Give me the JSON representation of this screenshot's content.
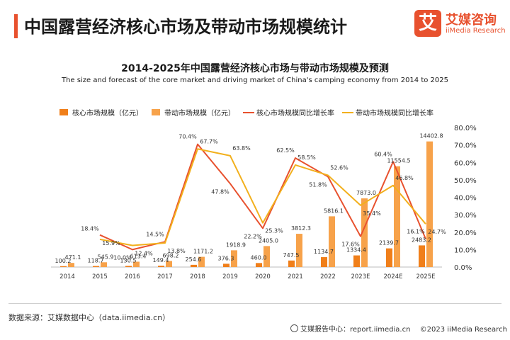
{
  "header": {
    "title": "中国露营经济核心市场及带动市场规模统计",
    "logo_glyph": "艾",
    "logo_cn": "艾媒咨询",
    "logo_en": "iiMedia Research"
  },
  "footer": {
    "source": "数据来源：艾媒数据中心（data.iimedia.cn）",
    "report": "艾媒报告中心：report.iimedia.cn",
    "copyright": "©2023 iiMedia Research"
  },
  "colors": {
    "core_bar": "#f07f1a",
    "driven_bar": "#f7a24a",
    "core_line": "#e8512e",
    "driven_line": "#f2b01d",
    "accent": "#e8512e"
  },
  "chart_data": {
    "type": "bar",
    "title": "2014-2025年中国露营经济核心市场与带动市场规模及预测",
    "subtitle": "The size and forecast of the core market and driving market of China's camping economy from 2014 to 2025",
    "categories": [
      "2014",
      "2015",
      "2016",
      "2017",
      "2018",
      "2019",
      "2020",
      "2021",
      "2022",
      "2023E",
      "2024E",
      "2025E"
    ],
    "series": [
      {
        "name": "核心市场规模（亿元）",
        "kind": "bar",
        "axis": "left",
        "values": [
          100.2,
          118.7,
          130.5,
          149.4,
          254.6,
          376.3,
          460.0,
          747.5,
          1134.7,
          1334.4,
          2139.7,
          2483.2
        ],
        "labels": [
          "100.2",
          "118.7",
          "130.5",
          "149.4",
          "254.6",
          "376.3",
          "460.0",
          "747.5",
          "1134.7",
          "1334.4",
          "2139.7",
          "2483.2"
        ]
      },
      {
        "name": "带动市场规模（亿元）",
        "kind": "bar",
        "axis": "left",
        "values": [
          471.1,
          545.9,
          613.4,
          698.2,
          1171.2,
          1918.9,
          2405.0,
          3812.3,
          5816.1,
          7873.0,
          11554.5,
          14402.8
        ],
        "labels": [
          "471.1",
          "545.9",
          "613.4",
          "698.2",
          "1171.2",
          "1918.9",
          "2405.0",
          "3812.3",
          "5816.1",
          "7873.0",
          "11554.5",
          "14402.8"
        ]
      },
      {
        "name": "核心市场规模同比增长率",
        "kind": "line",
        "axis": "right",
        "values": [
          null,
          18.4,
          10.0,
          14.5,
          70.4,
          47.8,
          22.2,
          62.5,
          51.8,
          17.6,
          60.4,
          16.1
        ],
        "labels": [
          null,
          "18.4%",
          "10.0%",
          "14.5%",
          "70.4%",
          "47.8%",
          "22.2%",
          "62.5%",
          "51.8%",
          "17.6%",
          "60.4%",
          "16.1%"
        ]
      },
      {
        "name": "带动市场规模同比增长率",
        "kind": "line",
        "axis": "right",
        "values": [
          null,
          15.9,
          12.4,
          13.8,
          67.7,
          63.8,
          25.3,
          58.5,
          52.6,
          35.4,
          46.8,
          24.7
        ],
        "labels": [
          null,
          "15.9%",
          "12.4%",
          "13.8%",
          "67.7%",
          "63.8%",
          "25.3%",
          "58.5%",
          "52.6%",
          "35.4%",
          "46.8%",
          "24.7%"
        ]
      }
    ],
    "y_left_range": [
      0,
      16000
    ],
    "y_right_range": [
      0,
      80
    ],
    "y_right_ticks": [
      "0.0%",
      "10.0%",
      "20.0%",
      "30.0%",
      "40.0%",
      "50.0%",
      "60.0%",
      "70.0%",
      "80.0%"
    ],
    "legend_position": "top",
    "grid": false
  }
}
